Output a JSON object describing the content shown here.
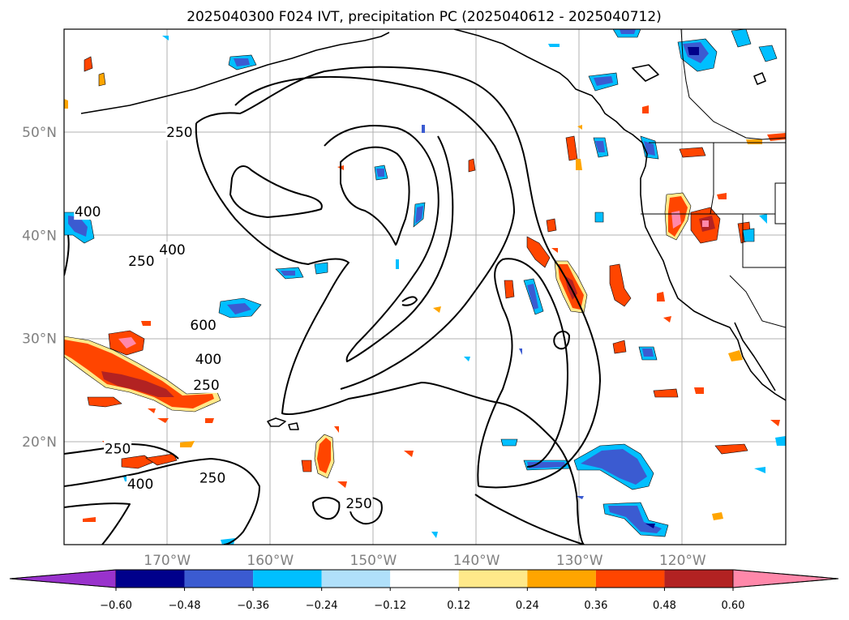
{
  "title": "2025040300 F024 IVT, precipitation PC (2025040612 - 2025040712)",
  "lat_labels": [
    {
      "text": "50°N",
      "lat": 50
    },
    {
      "text": "40°N",
      "lat": 40
    },
    {
      "text": "30°N",
      "lat": 30
    },
    {
      "text": "20°N",
      "lat": 20
    }
  ],
  "lon_labels": [
    {
      "text": "170°W",
      "lon": -170
    },
    {
      "text": "160°W",
      "lon": -160
    },
    {
      "text": "150°W",
      "lon": -150
    },
    {
      "text": "140°W",
      "lon": -140
    },
    {
      "text": "130°W",
      "lon": -130
    },
    {
      "text": "120°W",
      "lon": -120
    }
  ],
  "map_extent": {
    "lon_min": -180,
    "lon_max": -110,
    "lat_min": 10,
    "lat_max": 60
  },
  "colorbar": {
    "ticks": [
      "−0.60",
      "−0.48",
      "−0.36",
      "−0.24",
      "−0.12",
      "0.12",
      "0.24",
      "0.36",
      "0.48",
      "0.60"
    ],
    "colors": [
      "#9932cc",
      "#00008b",
      "#3b5bd1",
      "#00bfff",
      "#b0e0fa",
      "#ffffff",
      "#ffe98a",
      "#ffa500",
      "#ff4500",
      "#b22222",
      "#ff88aa"
    ]
  },
  "ivt_contour_labels": [
    {
      "text": "250",
      "lon": -168.8,
      "lat": 50.0
    },
    {
      "text": "400",
      "lon": -177.7,
      "lat": 42.3
    },
    {
      "text": "400",
      "lon": -169.5,
      "lat": 38.6
    },
    {
      "text": "250",
      "lon": -172.5,
      "lat": 37.5
    },
    {
      "text": "600",
      "lon": -166.5,
      "lat": 31.3
    },
    {
      "text": "400",
      "lon": -166.0,
      "lat": 28.0
    },
    {
      "text": "250",
      "lon": -166.2,
      "lat": 25.5
    },
    {
      "text": "250",
      "lon": -174.8,
      "lat": 19.3
    },
    {
      "text": "400",
      "lon": -172.6,
      "lat": 15.9
    },
    {
      "text": "250",
      "lon": -165.6,
      "lat": 16.5
    },
    {
      "text": "250",
      "lon": -151.4,
      "lat": 14.0
    }
  ]
}
